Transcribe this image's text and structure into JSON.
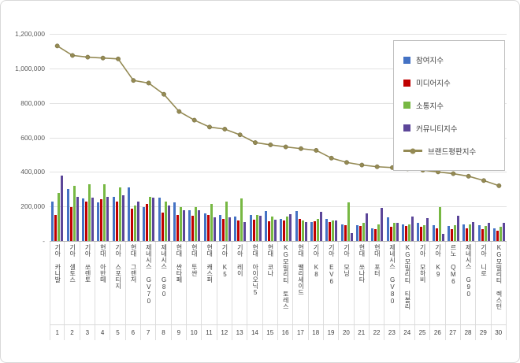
{
  "chart_data": {
    "type": "bar",
    "subtype": "grouped-bars-with-line-overlay",
    "title": "",
    "categories": [
      "기아 카니발",
      "기아 셀토스",
      "기아 쏘렌토",
      "현대 아반떼",
      "기아 스포티지",
      "현대 그랜저",
      "제네시스 GV70",
      "제네시스 G80",
      "현대 싼타페",
      "현대 투싼",
      "현대 캐스퍼",
      "기아 K5",
      "기아 레이",
      "현대 아이오닉5",
      "현대 코나",
      "KG모빌리티 토레스",
      "현대 팰리세이드",
      "기아 K8",
      "기아 EV6",
      "기아 모닝",
      "현대 쏘나타",
      "현대 포터",
      "제네시스 GV80",
      "KG모빌리티 티볼리",
      "기아 모하비",
      "기아 K9",
      "르노 QM6",
      "제네시스 G90",
      "기아 니로",
      "KG모빌리티 렉스턴"
    ],
    "ranks": [
      "1",
      "2",
      "3",
      "4",
      "5",
      "6",
      "7",
      "8",
      "9",
      "10",
      "11",
      "12",
      "13",
      "14",
      "15",
      "16",
      "17",
      "18",
      "19",
      "20",
      "21",
      "22",
      "23",
      "24",
      "25",
      "26",
      "27",
      "28",
      "29",
      "30"
    ],
    "series": [
      {
        "name": "참여지수",
        "type": "bar",
        "color": "#4472C4",
        "values": [
          230000,
          300000,
          245000,
          225000,
          255000,
          310000,
          195000,
          250000,
          225000,
          180000,
          160000,
          150000,
          140000,
          150000,
          175000,
          130000,
          175000,
          110000,
          130000,
          95000,
          90000,
          75000,
          135000,
          95000,
          105000,
          90000,
          85000,
          95000,
          90000,
          75000
        ]
      },
      {
        "name": "미디어지수",
        "type": "bar",
        "color": "#C00000",
        "values": [
          150000,
          195000,
          230000,
          240000,
          230000,
          185000,
          215000,
          165000,
          150000,
          145000,
          150000,
          130000,
          120000,
          125000,
          115000,
          120000,
          130000,
          115000,
          110000,
          90000,
          85000,
          70000,
          80000,
          85000,
          80000,
          75000,
          70000,
          75000,
          70000,
          60000
        ]
      },
      {
        "name": "소통지수",
        "type": "bar",
        "color": "#77B843",
        "values": [
          280000,
          320000,
          330000,
          330000,
          310000,
          205000,
          255000,
          230000,
          195000,
          195000,
          215000,
          230000,
          245000,
          150000,
          140000,
          140000,
          120000,
          130000,
          120000,
          225000,
          105000,
          95000,
          105000,
          98000,
          92000,
          195000,
          90000,
          95000,
          85000,
          82000
        ]
      },
      {
        "name": "커뮤니티지수",
        "type": "bar",
        "color": "#5C4699",
        "values": [
          380000,
          255000,
          250000,
          255000,
          265000,
          230000,
          250000,
          205000,
          180000,
          180000,
          135000,
          138000,
          110000,
          145000,
          125000,
          155000,
          110000,
          170000,
          120000,
          45000,
          160000,
          190000,
          105000,
          140000,
          133000,
          40000,
          145000,
          110000,
          105000,
          103000
        ]
      },
      {
        "name": "브랜드평판지수",
        "type": "line",
        "color": "#948A54",
        "values": [
          1130000,
          1075000,
          1065000,
          1060000,
          1055000,
          930000,
          915000,
          850000,
          750000,
          700000,
          660000,
          648000,
          615000,
          570000,
          557000,
          545000,
          535000,
          525000,
          480000,
          455000,
          440000,
          430000,
          425000,
          418000,
          410000,
          400000,
          390000,
          375000,
          350000,
          320000
        ]
      }
    ],
    "ylim": [
      0,
      1200000
    ],
    "ytick_step": 200000,
    "ytick_labels": [
      "-",
      "200,000",
      "400,000",
      "600,000",
      "800,000",
      "1,000,000",
      "1,200,000"
    ],
    "grid": true,
    "legend_position": "right-inside"
  }
}
